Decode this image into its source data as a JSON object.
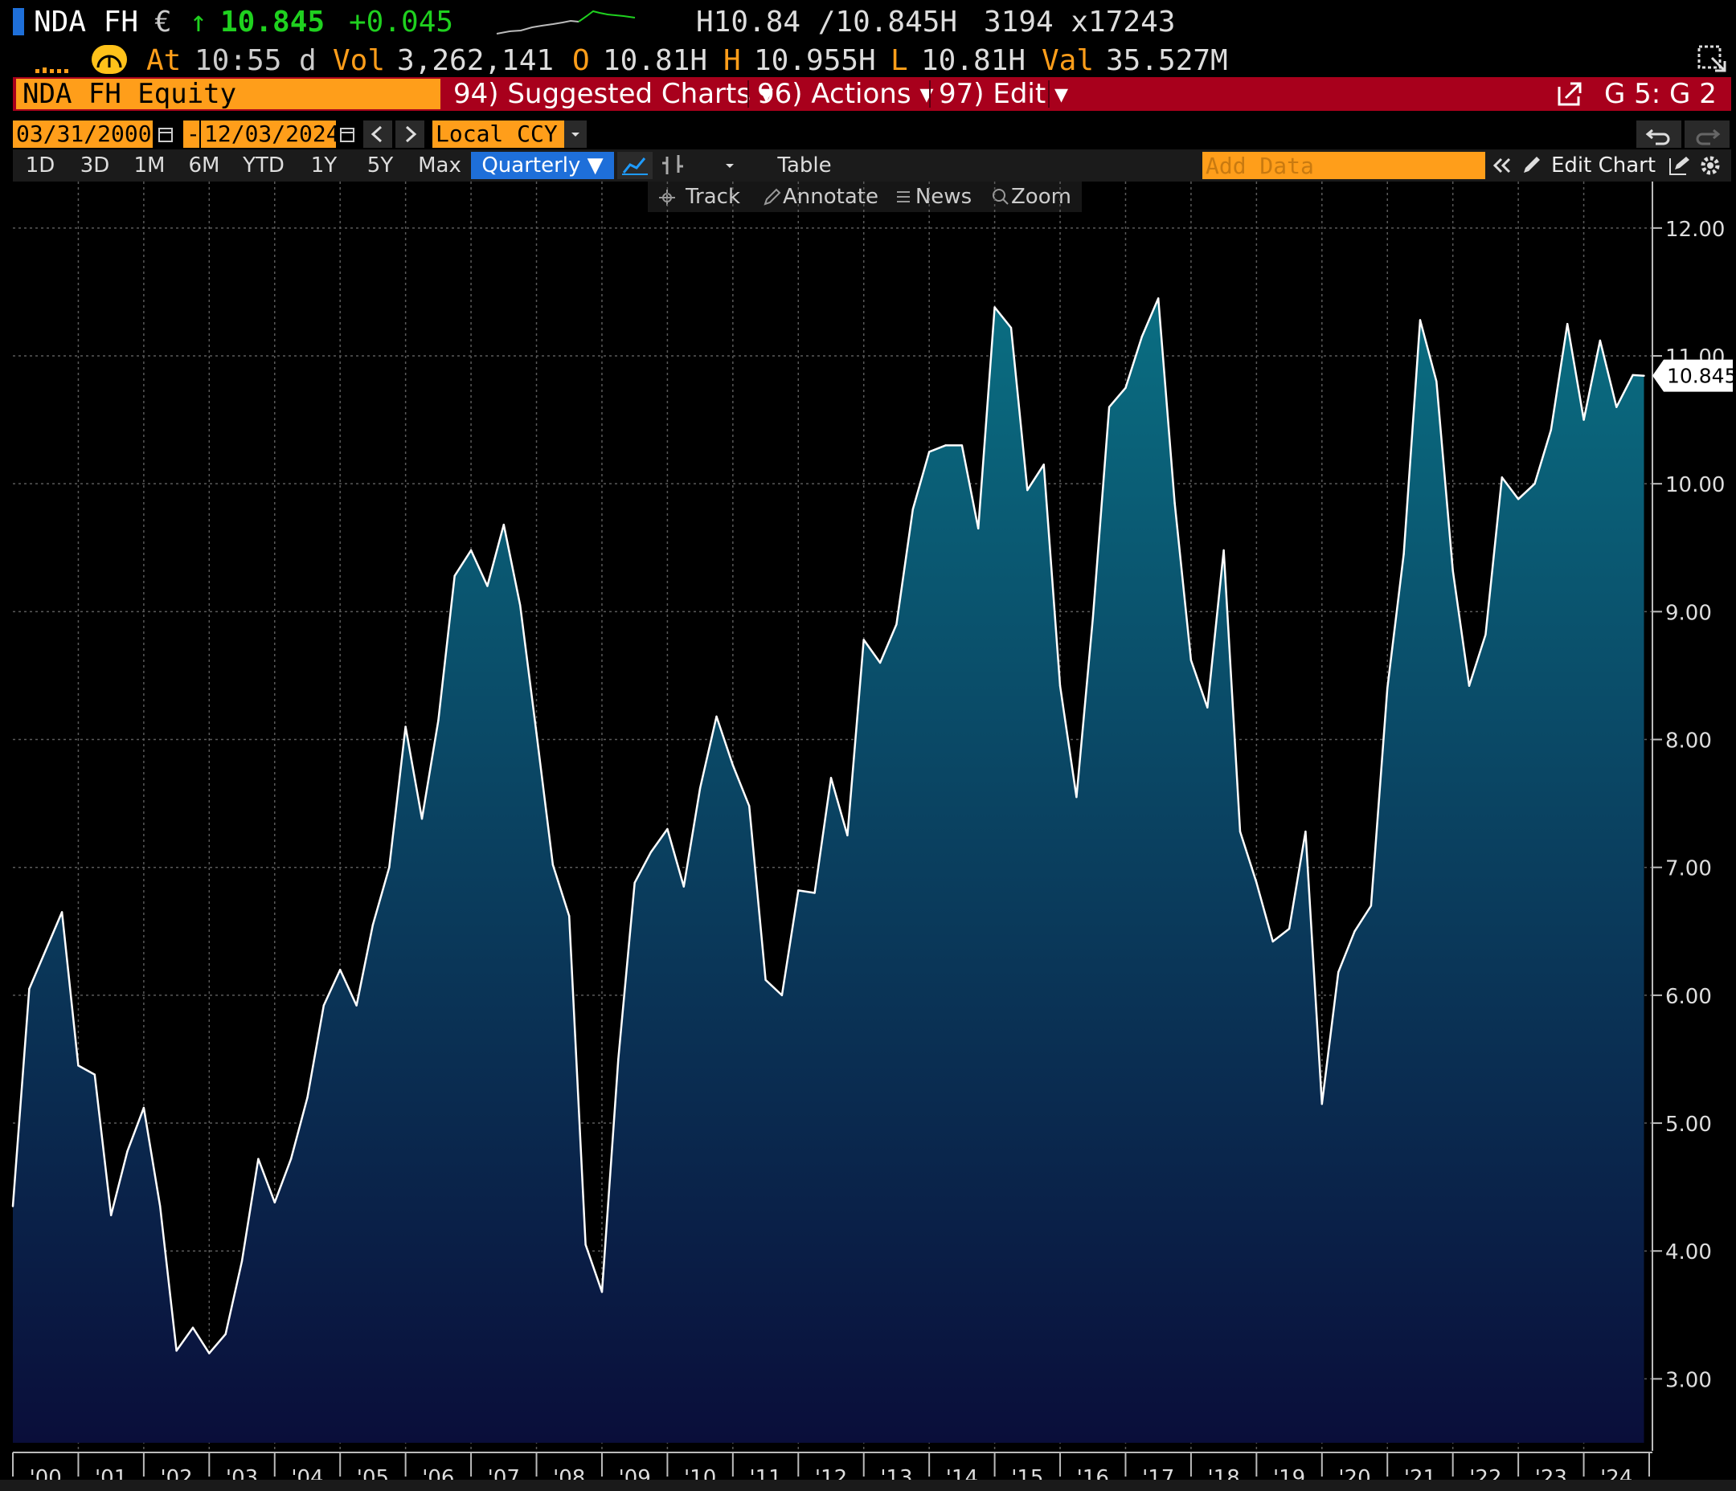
{
  "header": {
    "ticker": "NDA FH",
    "currency": "€",
    "arrow": "↑",
    "last": "10.845",
    "change": "+0.045",
    "hl_quote": "H10.84 /10.845H",
    "size": "3194 x17243",
    "at_label": "At",
    "time": "10:55 d",
    "vol_label": "Vol",
    "vol": "3,262,141",
    "open_label": "O",
    "open": "10.81H",
    "high_label": "H",
    "high": "10.955H",
    "low_label": "L",
    "low": "10.81H",
    "val_label": "Val",
    "val": "35.527M"
  },
  "menubar": {
    "security": "NDA FH Equity",
    "suggested": "94) Suggested Charts ▾",
    "actions": "96) Actions ▾",
    "edit": "97) Edit ▾",
    "page_id": "G 5: G 2"
  },
  "range": {
    "start": "03/31/2000",
    "end": "12/03/2024",
    "currency": "Local CCY",
    "dash": "-"
  },
  "periods": [
    "1D",
    "3D",
    "1M",
    "6M",
    "YTD",
    "1Y",
    "5Y",
    "Max"
  ],
  "frequency": "Quarterly ▼",
  "table_label": "Table",
  "add_data_placeholder": "Add Data",
  "edit_chart": "Edit Chart",
  "subtools": [
    "Track",
    "Annotate",
    "News",
    "Zoom"
  ],
  "colors": {
    "orange": "#ff9e1a",
    "red_bar": "#a8001c",
    "up_green": "#1fd11f",
    "active_blue": "#1e6fd9",
    "area_top": "#0a6e82",
    "area_bottom": "#0a0e3a"
  },
  "chart_data": {
    "type": "area",
    "ylim": [
      2.5,
      12.2
    ],
    "yticks": [
      3,
      4,
      5,
      6,
      7,
      8,
      9,
      10,
      11,
      12
    ],
    "ytick_labels": [
      "3.00",
      "4.00",
      "5.00",
      "6.00",
      "7.00",
      "8.00",
      "9.00",
      "10.00",
      "11.00",
      "12.00"
    ],
    "xlabels": [
      "'00",
      "'01",
      "'02",
      "'03",
      "'04",
      "'05",
      "'06",
      "'07",
      "'08",
      "'09",
      "'10",
      "'11",
      "'12",
      "'13",
      "'14",
      "'15",
      "'16",
      "'17",
      "'18",
      "'19",
      "'20",
      "'21",
      "'22",
      "'23",
      "'24"
    ],
    "last_value_label": "10.845",
    "x_years": [
      2000.0,
      2000.25,
      2000.5,
      2000.75,
      2001.0,
      2001.25,
      2001.5,
      2001.75,
      2002.0,
      2002.25,
      2002.5,
      2002.75,
      2003.0,
      2003.25,
      2003.5,
      2003.75,
      2004.0,
      2004.25,
      2004.5,
      2004.75,
      2005.0,
      2005.25,
      2005.5,
      2005.75,
      2006.0,
      2006.25,
      2006.5,
      2006.75,
      2007.0,
      2007.25,
      2007.5,
      2007.75,
      2008.0,
      2008.25,
      2008.5,
      2008.75,
      2009.0,
      2009.25,
      2009.5,
      2009.75,
      2010.0,
      2010.25,
      2010.5,
      2010.75,
      2011.0,
      2011.25,
      2011.5,
      2011.75,
      2012.0,
      2012.25,
      2012.5,
      2012.75,
      2013.0,
      2013.25,
      2013.5,
      2013.75,
      2014.0,
      2014.25,
      2014.5,
      2014.75,
      2015.0,
      2015.25,
      2015.5,
      2015.75,
      2016.0,
      2016.25,
      2016.5,
      2016.75,
      2017.0,
      2017.25,
      2017.5,
      2017.75,
      2018.0,
      2018.25,
      2018.5,
      2018.75,
      2019.0,
      2019.25,
      2019.5,
      2019.75,
      2020.0,
      2020.25,
      2020.5,
      2020.75,
      2021.0,
      2021.25,
      2021.5,
      2021.75,
      2022.0,
      2022.25,
      2022.5,
      2022.75,
      2023.0,
      2023.25,
      2023.5,
      2023.75,
      2024.0,
      2024.25,
      2024.5,
      2024.75,
      2024.92
    ],
    "values": [
      4.35,
      6.05,
      6.35,
      6.65,
      5.45,
      5.38,
      4.28,
      4.78,
      5.12,
      4.35,
      3.22,
      3.4,
      3.2,
      3.35,
      3.92,
      4.72,
      4.38,
      4.72,
      5.2,
      5.92,
      6.2,
      5.92,
      6.55,
      7.0,
      8.1,
      7.38,
      8.15,
      9.28,
      9.48,
      9.2,
      9.68,
      9.05,
      8.05,
      7.02,
      6.62,
      4.05,
      3.68,
      5.5,
      6.88,
      7.12,
      7.3,
      6.85,
      7.62,
      8.18,
      7.8,
      7.48,
      6.12,
      6.0,
      6.82,
      6.8,
      7.7,
      7.25,
      8.78,
      8.6,
      8.9,
      9.8,
      10.25,
      10.3,
      10.3,
      9.65,
      11.38,
      11.22,
      9.95,
      10.15,
      8.42,
      7.55,
      8.95,
      10.6,
      10.75,
      11.15,
      11.45,
      9.85,
      8.62,
      8.25,
      9.48,
      7.28,
      6.88,
      6.42,
      6.52,
      7.28,
      5.15,
      6.18,
      6.5,
      6.7,
      8.4,
      9.45,
      11.28,
      10.8,
      9.32,
      8.42,
      8.82,
      10.05,
      9.88,
      10.0,
      10.42,
      11.25,
      10.5,
      11.12,
      10.6,
      10.85,
      10.845
    ]
  }
}
